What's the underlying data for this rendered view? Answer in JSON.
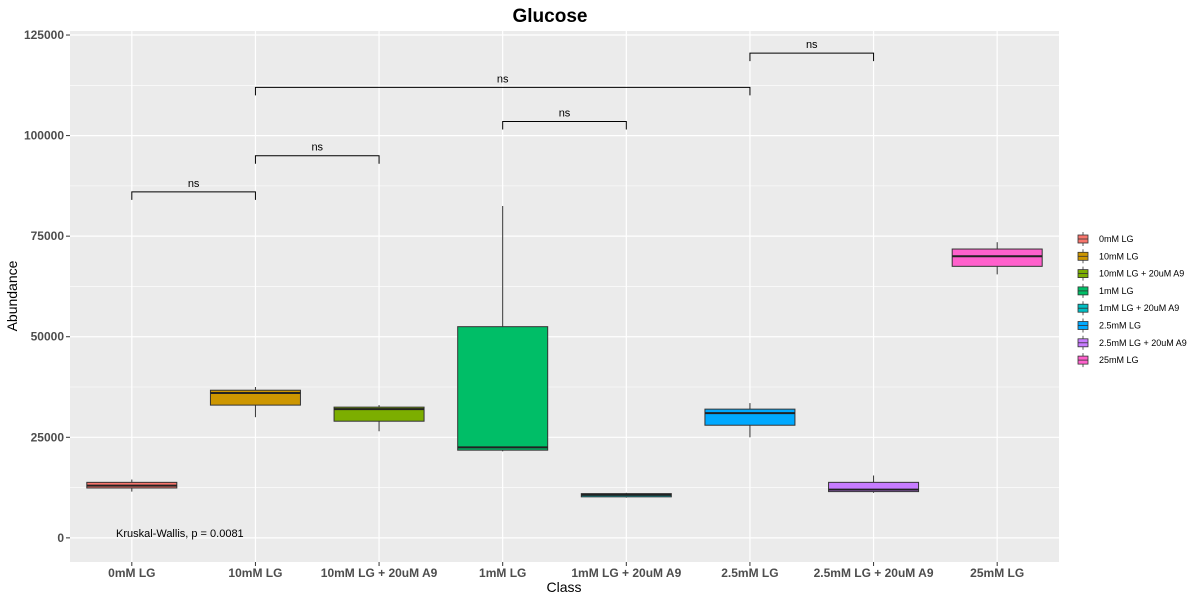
{
  "chart_data": {
    "type": "box",
    "title": "Glucose",
    "xlabel": "Class",
    "ylabel": "Abundance",
    "ylim": [
      -6000,
      126000
    ],
    "yticks": [
      0,
      25000,
      50000,
      75000,
      100000,
      125000
    ],
    "ytick_labels": [
      "0",
      "25000",
      "50000",
      "75000",
      "100000",
      "125000"
    ],
    "grid": true,
    "legend_position": "right",
    "categories": [
      "0mM LG",
      "10mM LG",
      "10mM LG + 20uM A9",
      "1mM LG",
      "1mM LG + 20uM A9",
      "2.5mM LG",
      "2.5mM LG + 20uM A9",
      "25mM LG"
    ],
    "colors": [
      "#F8766D",
      "#CD9600",
      "#7CAE00",
      "#00BE67",
      "#00BFC4",
      "#00A9FF",
      "#C77CFF",
      "#FF61CC"
    ],
    "series": [
      {
        "name": "0mM LG",
        "min": 11500,
        "q1": 12400,
        "median": 13000,
        "q3": 13800,
        "max": 14500
      },
      {
        "name": "10mM LG",
        "min": 30000,
        "q1": 33000,
        "median": 36000,
        "q3": 36700,
        "max": 37500
      },
      {
        "name": "10mM LG + 20uM A9",
        "min": 26500,
        "q1": 29000,
        "median": 32000,
        "q3": 32500,
        "max": 33000
      },
      {
        "name": "1mM LG",
        "min": 21500,
        "q1": 21800,
        "median": 22500,
        "q3": 52500,
        "max": 82500
      },
      {
        "name": "1mM LG + 20uM A9",
        "min": 10000,
        "q1": 10200,
        "median": 10700,
        "q3": 11000,
        "max": 11200
      },
      {
        "name": "2.5mM LG",
        "min": 25000,
        "q1": 28000,
        "median": 31000,
        "q3": 32000,
        "max": 33500
      },
      {
        "name": "2.5mM LG + 20uM A9",
        "min": 11200,
        "q1": 11500,
        "median": 12000,
        "q3": 13800,
        "max": 15500
      },
      {
        "name": "25mM LG",
        "min": 65500,
        "q1": 67500,
        "median": 70000,
        "q3": 71800,
        "max": 73500
      }
    ],
    "comparisons": [
      {
        "from": 0,
        "to": 1,
        "y": 86000,
        "label": "ns"
      },
      {
        "from": 1,
        "to": 2,
        "y": 95000,
        "label": "ns"
      },
      {
        "from": 3,
        "to": 4,
        "y": 103500,
        "label": "ns"
      },
      {
        "from": 1,
        "to": 5,
        "y": 112000,
        "label": "ns"
      },
      {
        "from": 5,
        "to": 6,
        "y": 120500,
        "label": "ns"
      }
    ],
    "annotation": "Kruskal-Wallis, p = 0.0081"
  }
}
